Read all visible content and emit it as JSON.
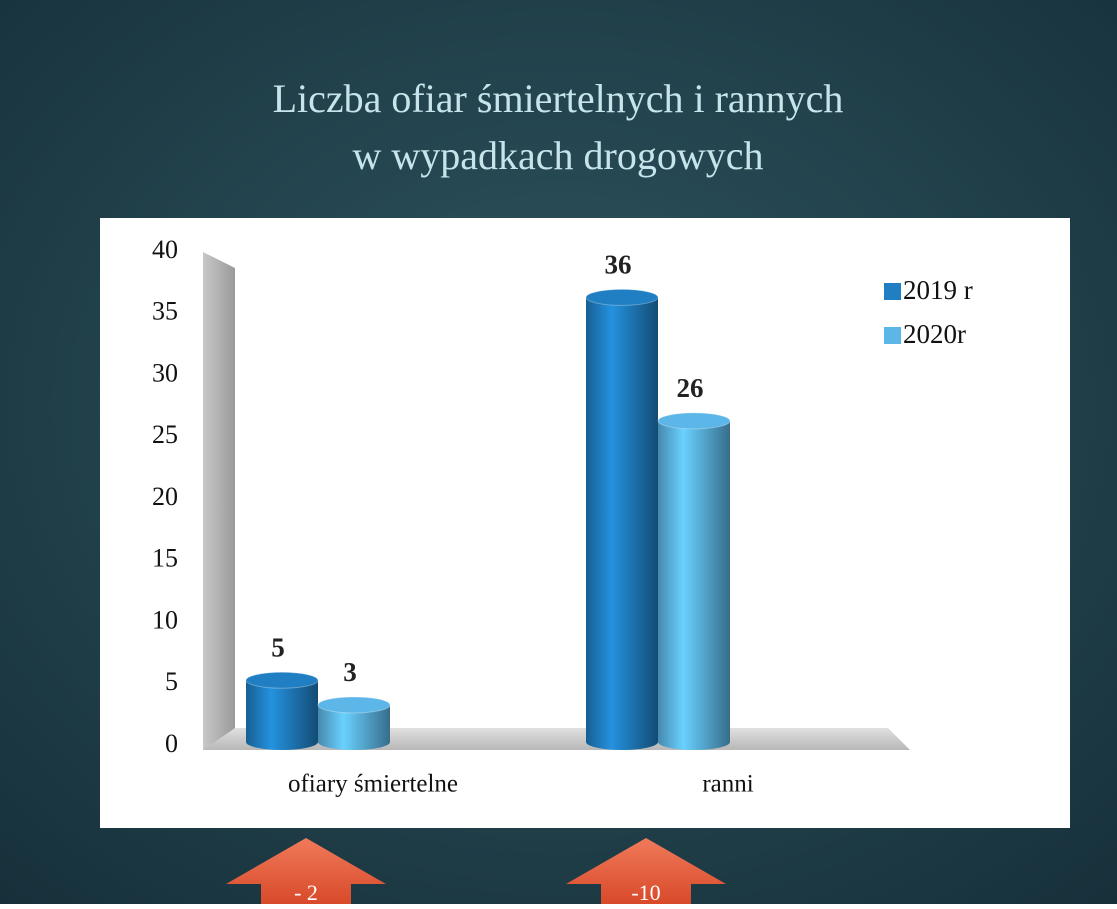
{
  "chart_data": {
    "type": "bar3d",
    "title": [
      "Liczba ofiar śmiertelnych i rannych",
      "w wypadkach drogowych"
    ],
    "categories": [
      "ofiary śmiertelne",
      "ranni"
    ],
    "series": [
      {
        "name": "2019 r",
        "color": "#1f7fc2",
        "values": [
          5,
          36
        ]
      },
      {
        "name": "2020r",
        "color": "#5cb6e8",
        "values": [
          3,
          26
        ]
      }
    ],
    "ylim": [
      0,
      40
    ],
    "yticks": [
      0,
      5,
      10,
      15,
      20,
      25,
      30,
      35,
      40
    ],
    "legend": "top-right",
    "annotations": [
      "- 2",
      "-10"
    ]
  }
}
